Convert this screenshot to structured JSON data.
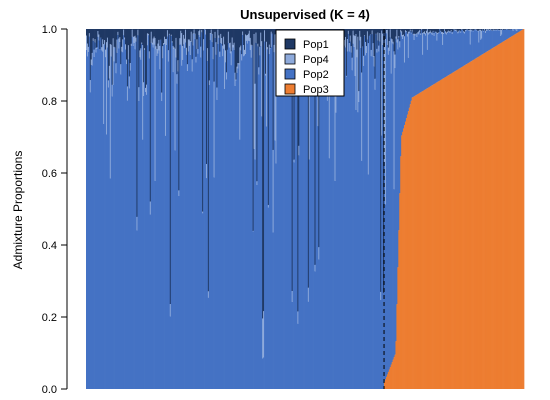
{
  "chart_data": {
    "type": "bar",
    "subtype": "stacked-admixture",
    "title": "Unsupervised (K = 4)",
    "ylabel": "Admixture Proportions",
    "xlabel": "",
    "ylim": [
      0,
      1
    ],
    "yticks": [
      "0.0",
      "0.2",
      "0.4",
      "0.6",
      "0.8",
      "1.0"
    ],
    "individuals_approx": 460,
    "group_boundary_fraction": 0.68,
    "legend_position": "top-center",
    "series": [
      {
        "name": "Pop1",
        "color": "#1f3864"
      },
      {
        "name": "Pop4",
        "color": "#8eaadb"
      },
      {
        "name": "Pop2",
        "color": "#4472c4"
      },
      {
        "name": "Pop3",
        "color": "#ed7d31"
      }
    ],
    "series_stack_order": [
      "Pop3",
      "Pop2",
      "Pop4",
      "Pop1"
    ],
    "group1": {
      "Pop3_mean": 0.0,
      "Pop1_top_band": [
        0.0,
        0.16
      ],
      "Pop4_band": [
        0.0,
        0.04
      ]
    },
    "group2": {
      "Pop3_profile_start": 0.02,
      "Pop3_profile_mid": 0.85,
      "Pop3_profile_end": 1.0
    }
  }
}
